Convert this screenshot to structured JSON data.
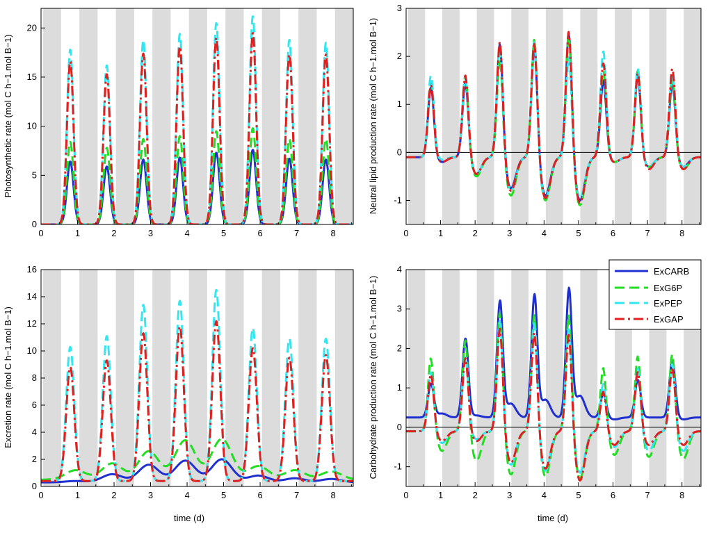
{
  "colors": {
    "ExCARB": "#1f2fd0",
    "ExG6P": "#22dd22",
    "ExPEP": "#33e6f0",
    "ExGAP": "#e0201e",
    "night": "#dcdcdc"
  },
  "legend": {
    "entries": [
      {
        "name": "ExCARB",
        "style": "solid"
      },
      {
        "name": "ExG6P",
        "style": "dash"
      },
      {
        "name": "ExPEP",
        "style": "dash"
      },
      {
        "name": "ExGAP",
        "style": "dashdot"
      }
    ]
  },
  "chart_data": [
    {
      "id": "photosynthesis",
      "type": "line",
      "title": "",
      "xlabel": "",
      "ylabel": "Photosynthetic rate (mol C h−1.mol B−1)",
      "xlim": [
        0,
        8.55
      ],
      "ylim": [
        0,
        22
      ],
      "xticks": [
        0,
        1,
        2,
        3,
        4,
        5,
        6,
        7,
        8
      ],
      "yticks": [
        0,
        5,
        10,
        15,
        20
      ],
      "zero_line": false,
      "night_bands": [
        [
          0.05,
          0.55
        ],
        [
          1.05,
          1.55
        ],
        [
          2.05,
          2.55
        ],
        [
          3.05,
          3.55
        ],
        [
          4.05,
          4.55
        ],
        [
          5.05,
          5.55
        ],
        [
          6.05,
          6.55
        ],
        [
          7.05,
          7.55
        ],
        [
          8.05,
          8.55
        ]
      ],
      "series": [
        {
          "name": "ExCARB",
          "peaks": [
            6.4,
            5.9,
            6.6,
            6.8,
            7.3,
            7.6,
            6.7,
            6.6
          ]
        },
        {
          "name": "ExG6P",
          "peaks": [
            8.4,
            7.8,
            8.7,
            9.0,
            9.5,
            9.8,
            8.7,
            8.7
          ]
        },
        {
          "name": "ExPEP",
          "peaks": [
            17.8,
            16.2,
            18.8,
            19.4,
            20.5,
            21.2,
            18.8,
            18.5
          ]
        },
        {
          "name": "ExGAP",
          "peaks": [
            16.6,
            15.3,
            17.4,
            18.1,
            19.0,
            19.5,
            17.3,
            17.3
          ]
        }
      ]
    },
    {
      "id": "neutral-lipid",
      "type": "line",
      "title": "",
      "xlabel": "",
      "ylabel": "Neutral lipid production rate (mol C h−1.mol B−1)",
      "xlim": [
        0,
        8.55
      ],
      "ylim": [
        -1.5,
        3
      ],
      "xticks": [
        0,
        1,
        2,
        3,
        4,
        5,
        6,
        7,
        8
      ],
      "yticks": [
        -1,
        0,
        1,
        2,
        3
      ],
      "zero_line": true,
      "night_bands": [
        [
          0.05,
          0.55
        ],
        [
          1.05,
          1.55
        ],
        [
          2.05,
          2.55
        ],
        [
          3.05,
          3.55
        ],
        [
          4.05,
          4.55
        ],
        [
          5.05,
          5.55
        ],
        [
          6.05,
          6.55
        ],
        [
          7.05,
          7.55
        ],
        [
          8.05,
          8.55
        ]
      ],
      "series": [
        {
          "name": "ExCARB",
          "peaks": [
            1.35,
            1.45,
            2.25,
            2.2,
            2.5,
            1.5,
            1.6,
            1.45
          ],
          "troughs": [
            -0.2,
            -0.45,
            -0.75,
            -0.9,
            -1.0,
            -0.2,
            -0.3,
            -0.3
          ]
        },
        {
          "name": "ExG6P",
          "peaks": [
            1.45,
            1.6,
            1.95,
            2.35,
            2.45,
            1.7,
            1.7,
            1.55
          ],
          "troughs": [
            -0.15,
            -0.5,
            -0.9,
            -1.0,
            -1.1,
            -0.2,
            -0.3,
            -0.35
          ]
        },
        {
          "name": "ExPEP",
          "peaks": [
            1.6,
            1.55,
            2.2,
            2.3,
            2.0,
            2.1,
            1.75,
            1.65
          ],
          "troughs": [
            -0.15,
            -0.45,
            -0.8,
            -0.95,
            -0.95,
            -0.2,
            -0.3,
            -0.3
          ]
        },
        {
          "name": "ExGAP",
          "peaks": [
            1.4,
            1.6,
            2.3,
            2.3,
            2.52,
            1.85,
            1.65,
            1.75
          ],
          "troughs": [
            -0.2,
            -0.45,
            -0.8,
            -0.95,
            -1.05,
            -0.2,
            -0.35,
            -0.35
          ]
        }
      ]
    },
    {
      "id": "excretion",
      "type": "line",
      "title": "",
      "xlabel": "time (d)",
      "ylabel": "Excretion rate (mol C h−1.mol B−1)",
      "xlim": [
        0,
        8.55
      ],
      "ylim": [
        0,
        16
      ],
      "xticks": [
        0,
        1,
        2,
        3,
        4,
        5,
        6,
        7,
        8
      ],
      "yticks": [
        0,
        2,
        4,
        6,
        8,
        10,
        12,
        14,
        16
      ],
      "zero_line": false,
      "night_bands": [
        [
          0.05,
          0.55
        ],
        [
          1.05,
          1.55
        ],
        [
          2.05,
          2.55
        ],
        [
          3.05,
          3.55
        ],
        [
          4.05,
          4.55
        ],
        [
          5.05,
          5.55
        ],
        [
          6.05,
          6.55
        ],
        [
          7.05,
          7.55
        ],
        [
          8.05,
          8.55
        ]
      ],
      "series": [
        {
          "name": "ExCARB",
          "peaks": [
            0.4,
            0.9,
            1.6,
            1.9,
            2.0,
            0.8,
            0.6,
            0.55
          ],
          "base": 0.3
        },
        {
          "name": "ExG6P",
          "peaks": [
            1.2,
            1.7,
            2.6,
            3.4,
            3.5,
            1.5,
            1.2,
            1.1
          ],
          "base": 0.5
        },
        {
          "name": "ExPEP",
          "peaks": [
            10.3,
            11.1,
            13.4,
            13.7,
            14.5,
            11.7,
            10.9,
            10.9
          ],
          "base": 0.4
        },
        {
          "name": "ExGAP",
          "peaks": [
            8.8,
            9.3,
            11.3,
            11.8,
            12.2,
            10.2,
            9.5,
            9.7
          ],
          "base": 0.4
        }
      ]
    },
    {
      "id": "carbohydrate",
      "type": "line",
      "title": "",
      "xlabel": "time (d)",
      "ylabel": "Carbohydrate production rate (mol C h−1.mol B−1)",
      "xlim": [
        0,
        8.55
      ],
      "ylim": [
        -1.5,
        4
      ],
      "xticks": [
        0,
        1,
        2,
        3,
        4,
        5,
        6,
        7,
        8
      ],
      "yticks": [
        -1,
        0,
        1,
        2,
        3,
        4
      ],
      "zero_line": true,
      "night_bands": [
        [
          0.05,
          0.55
        ],
        [
          1.05,
          1.55
        ],
        [
          2.05,
          2.55
        ],
        [
          3.05,
          3.55
        ],
        [
          4.05,
          4.55
        ],
        [
          5.05,
          5.55
        ],
        [
          6.05,
          6.55
        ],
        [
          7.05,
          7.55
        ],
        [
          8.05,
          8.55
        ]
      ],
      "series": [
        {
          "name": "ExCARB",
          "peaks": [
            1.1,
            2.25,
            3.2,
            3.35,
            3.5,
            0.85,
            1.2,
            1.7
          ],
          "troughs": [
            0.35,
            0.3,
            0.6,
            0.7,
            0.8,
            0.2,
            0.25,
            0.2
          ]
        },
        {
          "name": "ExG6P",
          "peaks": [
            1.75,
            2.2,
            2.9,
            2.85,
            2.85,
            1.5,
            1.8,
            1.85
          ],
          "troughs": [
            -0.6,
            -0.85,
            -1.2,
            -1.25,
            -1.3,
            -0.7,
            -0.75,
            -0.8
          ]
        },
        {
          "name": "ExPEP",
          "peaks": [
            1.4,
            1.8,
            2.7,
            2.65,
            2.5,
            1.1,
            1.5,
            1.6
          ],
          "troughs": [
            -0.4,
            -0.3,
            -0.95,
            -1.1,
            -1.15,
            -0.5,
            -0.6,
            -0.6
          ]
        },
        {
          "name": "ExGAP",
          "peaks": [
            1.35,
            1.75,
            2.5,
            2.4,
            2.35,
            0.9,
            1.4,
            1.5
          ],
          "troughs": [
            -0.35,
            -0.35,
            -0.9,
            -1.05,
            -1.35,
            -0.45,
            -0.45,
            -0.45
          ]
        }
      ]
    }
  ]
}
